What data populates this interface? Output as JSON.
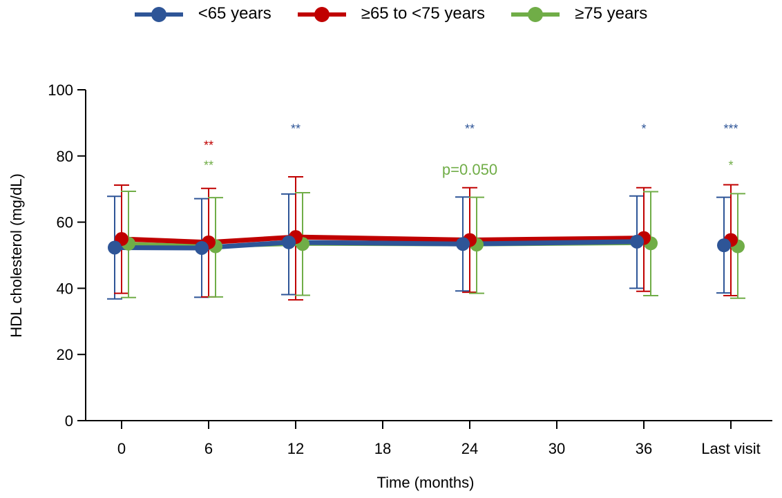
{
  "chart_data": {
    "type": "line",
    "xlabel": "Time (months)",
    "ylabel": "HDL cholesterol (mg/dL)",
    "ylim": [
      0,
      100
    ],
    "yticks": [
      0,
      20,
      40,
      60,
      80,
      100
    ],
    "xticks": [
      {
        "pos": 0,
        "label": "0"
      },
      {
        "pos": 6,
        "label": "6"
      },
      {
        "pos": 12,
        "label": "12"
      },
      {
        "pos": 18,
        "label": "18"
      },
      {
        "pos": 24,
        "label": "24"
      },
      {
        "pos": 30,
        "label": "30"
      },
      {
        "pos": 36,
        "label": "36"
      },
      {
        "pos": 42,
        "label": "Last visit"
      }
    ],
    "legend_position": "top-center",
    "series": [
      {
        "name": "<65 years",
        "color": "#2e5597",
        "connected_x": [
          0,
          6,
          12,
          24,
          36
        ],
        "points": [
          {
            "x": 0,
            "y": 52.3,
            "err_low": 36.8,
            "err_high": 67.8
          },
          {
            "x": 6,
            "y": 52.2,
            "err_low": 37.3,
            "err_high": 67.1
          },
          {
            "x": 12,
            "y": 53.9,
            "err_low": 38.1,
            "err_high": 68.5
          },
          {
            "x": 24,
            "y": 53.4,
            "err_low": 39.2,
            "err_high": 67.6
          },
          {
            "x": 36,
            "y": 54.1,
            "err_low": 40.0,
            "err_high": 67.9
          },
          {
            "x": 42,
            "y": 53.0,
            "err_low": 38.6,
            "err_high": 67.5
          }
        ]
      },
      {
        "name": "≥65 to <75 years",
        "color": "#c00000",
        "connected_x": [
          0,
          6,
          12,
          24,
          36
        ],
        "points": [
          {
            "x": 0,
            "y": 54.9,
            "err_low": 38.5,
            "err_high": 71.2
          },
          {
            "x": 6,
            "y": 53.9,
            "err_low": 37.4,
            "err_high": 70.2
          },
          {
            "x": 12,
            "y": 55.5,
            "err_low": 36.5,
            "err_high": 73.7
          },
          {
            "x": 24,
            "y": 54.6,
            "err_low": 38.8,
            "err_high": 70.4
          },
          {
            "x": 36,
            "y": 55.2,
            "err_low": 39.1,
            "err_high": 70.4
          },
          {
            "x": 42,
            "y": 54.6,
            "err_low": 37.8,
            "err_high": 71.3
          }
        ]
      },
      {
        "name": "≥75 years",
        "color": "#70ad47",
        "connected_x": [
          0,
          6,
          12,
          24,
          36
        ],
        "points": [
          {
            "x": 0,
            "y": 53.5,
            "err_low": 37.2,
            "err_high": 69.3
          },
          {
            "x": 6,
            "y": 52.7,
            "err_low": 37.4,
            "err_high": 67.4
          },
          {
            "x": 12,
            "y": 53.4,
            "err_low": 37.9,
            "err_high": 68.9
          },
          {
            "x": 24,
            "y": 53.2,
            "err_low": 38.5,
            "err_high": 67.5
          },
          {
            "x": 36,
            "y": 53.6,
            "err_low": 37.8,
            "err_high": 69.2
          },
          {
            "x": 42,
            "y": 52.7,
            "err_low": 37.0,
            "err_high": 68.6
          }
        ]
      }
    ],
    "annotations": [
      {
        "text": "**",
        "x": 6,
        "y": 84,
        "color": "#c00000"
      },
      {
        "text": "**",
        "x": 6,
        "y": 78,
        "color": "#70ad47"
      },
      {
        "text": "**",
        "x": 12,
        "y": 89,
        "color": "#2e5597"
      },
      {
        "text": "**",
        "x": 24,
        "y": 89,
        "color": "#2e5597"
      },
      {
        "text": "p=0.050",
        "x": 24,
        "y": 76,
        "color": "#70ad47",
        "size": "large"
      },
      {
        "text": "*",
        "x": 36,
        "y": 89,
        "color": "#2e5597"
      },
      {
        "text": "***",
        "x": 42,
        "y": 89,
        "color": "#2e5597"
      },
      {
        "text": "*",
        "x": 42,
        "y": 78,
        "color": "#70ad47"
      }
    ]
  }
}
